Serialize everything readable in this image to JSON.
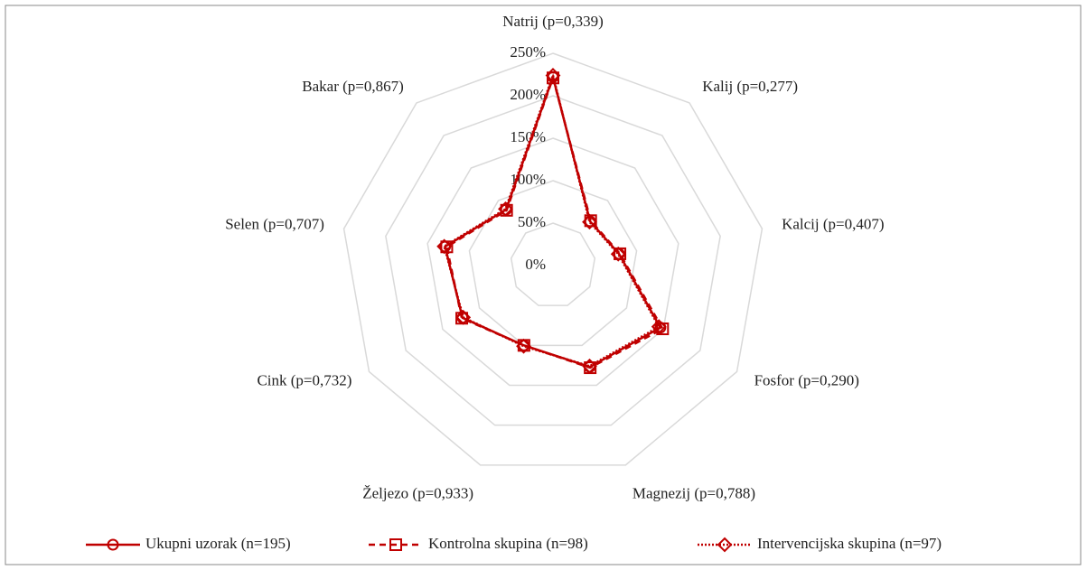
{
  "chart_data": {
    "type": "radar",
    "categories": [
      "Natrij (p=0,339)",
      "Kalij (p=0,277)",
      "Kalcij (p=0,407)",
      "Fosfor (p=0,290)",
      "Magnezij (p=0,788)",
      "Željezo (p=0,933)",
      "Cink (p=0,732)",
      "Selen (p=0,707)",
      "Bakar (p=0,867)"
    ],
    "series": [
      {
        "name": "Ukupni uzorak (n=195)",
        "color": "#c00000",
        "line": "solid",
        "marker": "circle",
        "values": [
          222,
          68,
          79,
          146,
          127,
          100,
          123,
          129,
          86
        ]
      },
      {
        "name": "Kontrolna skupina (n=98)",
        "color": "#c00000",
        "line": "dashed",
        "marker": "square",
        "values": [
          221,
          69,
          80,
          149,
          128,
          100,
          124,
          127,
          85
        ]
      },
      {
        "name": "Intervencijska skupina (n=97)",
        "color": "#c00000",
        "line": "dotted",
        "marker": "diamond",
        "values": [
          224,
          67,
          78,
          144,
          126,
          101,
          122,
          130,
          87
        ]
      }
    ],
    "ylim": [
      0,
      250
    ],
    "yticks": [
      {
        "value": 0,
        "label": "0%"
      },
      {
        "value": 50,
        "label": "50%"
      },
      {
        "value": 100,
        "label": "100%"
      },
      {
        "value": 150,
        "label": "150%"
      },
      {
        "value": 200,
        "label": "200%"
      },
      {
        "value": 250,
        "label": "250%"
      }
    ],
    "grid": true,
    "legend": "bottom"
  }
}
